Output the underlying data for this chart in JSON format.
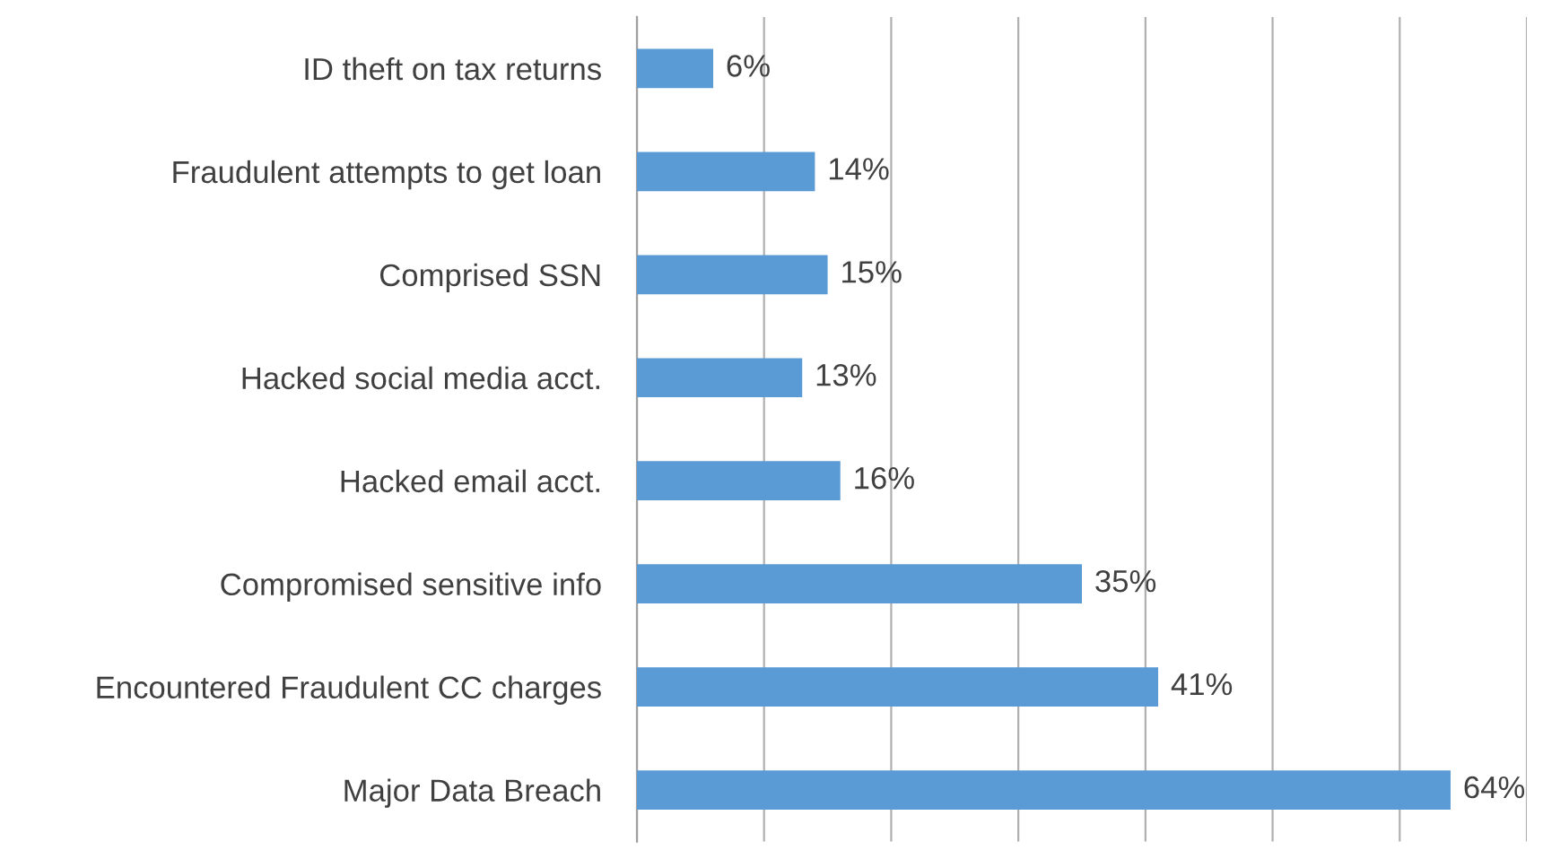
{
  "chart_data": {
    "type": "bar",
    "orientation": "horizontal",
    "categories": [
      "ID theft on tax returns",
      "Fraudulent attempts to get loan",
      "Comprised SSN",
      "Hacked social media acct.",
      "Hacked email acct.",
      "Compromised sensitive info",
      "Encountered Fraudulent CC charges",
      "Major Data Breach"
    ],
    "values": [
      6,
      14,
      15,
      13,
      16,
      35,
      41,
      64
    ],
    "value_labels": [
      "6%",
      "14%",
      "15%",
      "13%",
      "16%",
      "35%",
      "41%",
      "64%"
    ],
    "color": "#5b9bd5",
    "xlim": [
      0,
      70
    ],
    "xticks": [
      {
        "value": 0,
        "label": null
      },
      {
        "value": 10,
        "label": null
      },
      {
        "value": 20,
        "label": null
      },
      {
        "value": 30,
        "label": null
      },
      {
        "value": 40,
        "label": null
      },
      {
        "value": 50,
        "label": null
      },
      {
        "value": 60,
        "label": null
      },
      {
        "value": 70,
        "label": null
      }
    ],
    "tick_labels": "y",
    "grid": "x",
    "legend": false
  }
}
